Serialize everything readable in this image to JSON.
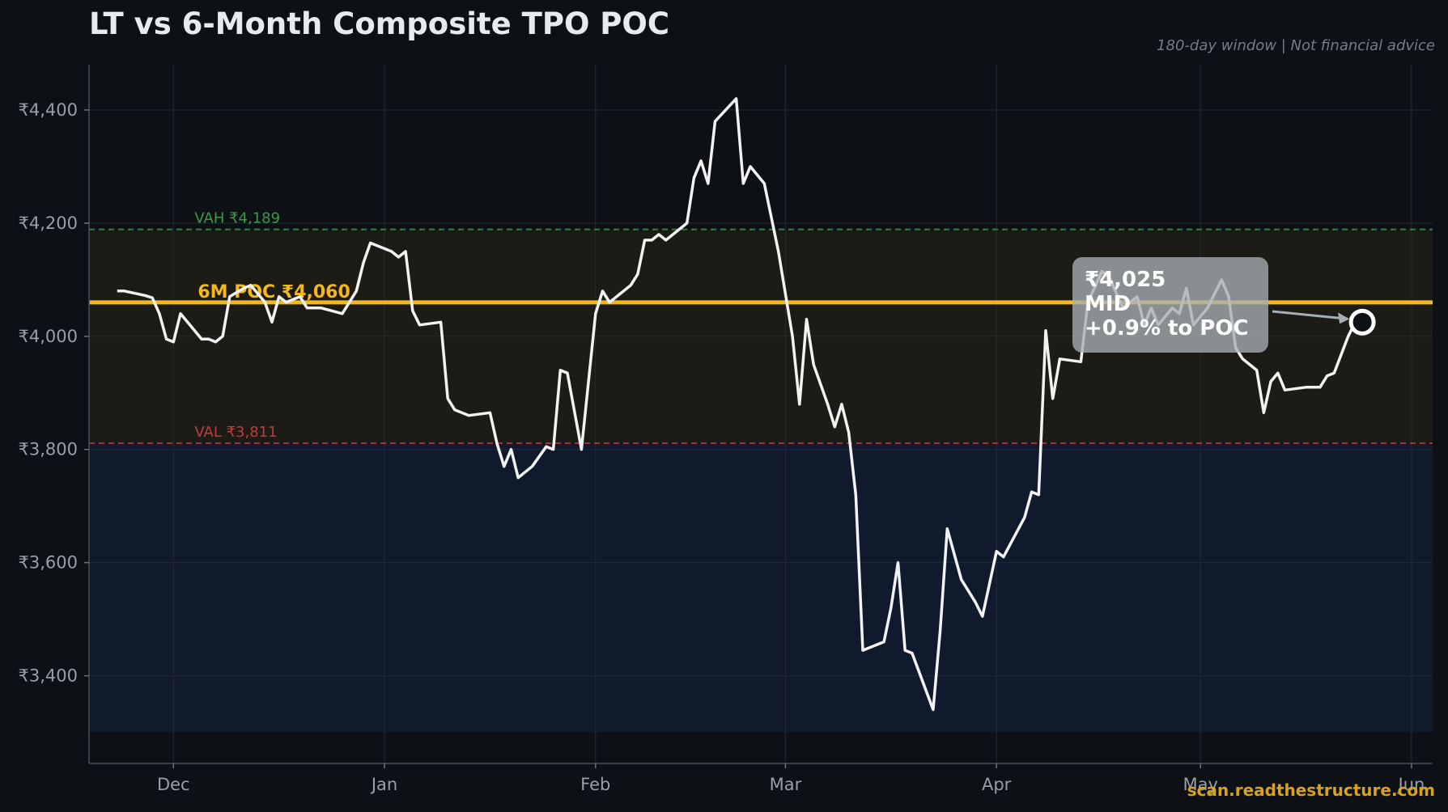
{
  "header": {
    "title": "LT vs 6-Month Composite TPO POC",
    "subtitle": "180-day window | Not financial advice"
  },
  "footer": {
    "watermark": "scan.readthestructure.com"
  },
  "chart_data": {
    "type": "line",
    "ylim": [
      3245,
      4480
    ],
    "xlim": [
      -9,
      182
    ],
    "y_ticks": [
      {
        "v": 3400,
        "label": "₹3,400"
      },
      {
        "v": 3600,
        "label": "₹3,600"
      },
      {
        "v": 3800,
        "label": "₹3,800"
      },
      {
        "v": 4000,
        "label": "₹4,000"
      },
      {
        "v": 4200,
        "label": "₹4,200"
      },
      {
        "v": 4400,
        "label": "₹4,400"
      }
    ],
    "x_ticks": [
      {
        "v": 3,
        "label": "Dec"
      },
      {
        "v": 33,
        "label": "Jan"
      },
      {
        "v": 63,
        "label": "Feb"
      },
      {
        "v": 90,
        "label": "Mar"
      },
      {
        "v": 120,
        "label": "Apr"
      },
      {
        "v": 149,
        "label": "May"
      },
      {
        "v": 179,
        "label": "Jun"
      }
    ],
    "grid": true,
    "zones": [
      {
        "name": "value-area-band",
        "from": 3811,
        "to": 4189,
        "color": "#1c1b16"
      },
      {
        "name": "below-val-band",
        "from": 3300,
        "to": 3811,
        "color": "#0f1b2c"
      }
    ],
    "levels": {
      "poc": {
        "value": 4060,
        "label": "6M POC ₹4,060",
        "color": "#f5b71a"
      },
      "vah": {
        "value": 4189,
        "label": "VAH ₹4,189",
        "color": "#3a9a4a"
      },
      "val": {
        "value": 3811,
        "label": "VAL ₹3,811",
        "color": "#c23b3b"
      }
    },
    "series": [
      {
        "color": "#f2f2f2",
        "points": [
          [
            -5,
            4080
          ],
          [
            -4,
            4080
          ],
          [
            -1,
            4072
          ],
          [
            0,
            4068
          ],
          [
            1,
            4040
          ],
          [
            2,
            3995
          ],
          [
            3,
            3990
          ],
          [
            4,
            4040
          ],
          [
            7,
            3995
          ],
          [
            8,
            3995
          ],
          [
            9,
            3990
          ],
          [
            10,
            4000
          ],
          [
            11,
            4070
          ],
          [
            13,
            4085
          ],
          [
            14,
            4090
          ],
          [
            16,
            4060
          ],
          [
            17,
            4025
          ],
          [
            18,
            4070
          ],
          [
            19,
            4060
          ],
          [
            21,
            4070
          ],
          [
            22,
            4050
          ],
          [
            24,
            4050
          ],
          [
            27,
            4040
          ],
          [
            29,
            4080
          ],
          [
            30,
            4130
          ],
          [
            31,
            4165
          ],
          [
            34,
            4150
          ],
          [
            35,
            4140
          ],
          [
            36,
            4150
          ],
          [
            37,
            4045
          ],
          [
            38,
            4020
          ],
          [
            41,
            4025
          ],
          [
            42,
            3890
          ],
          [
            43,
            3870
          ],
          [
            45,
            3860
          ],
          [
            48,
            3865
          ],
          [
            49,
            3810
          ],
          [
            50,
            3770
          ],
          [
            51,
            3800
          ],
          [
            52,
            3750
          ],
          [
            54,
            3770
          ],
          [
            56,
            3805
          ],
          [
            57,
            3800
          ],
          [
            58,
            3940
          ],
          [
            59,
            3935
          ],
          [
            61,
            3800
          ],
          [
            62,
            3920
          ],
          [
            63,
            4040
          ],
          [
            64,
            4080
          ],
          [
            65,
            4060
          ],
          [
            68,
            4090
          ],
          [
            69,
            4110
          ],
          [
            70,
            4170
          ],
          [
            71,
            4170
          ],
          [
            72,
            4180
          ],
          [
            73,
            4170
          ],
          [
            75,
            4190
          ],
          [
            76,
            4200
          ],
          [
            77,
            4280
          ],
          [
            78,
            4310
          ],
          [
            79,
            4270
          ],
          [
            80,
            4380
          ],
          [
            83,
            4420
          ],
          [
            84,
            4270
          ],
          [
            85,
            4300
          ],
          [
            87,
            4270
          ],
          [
            89,
            4150
          ],
          [
            91,
            4000
          ],
          [
            92,
            3880
          ],
          [
            93,
            4030
          ],
          [
            94,
            3950
          ],
          [
            96,
            3880
          ],
          [
            97,
            3840
          ],
          [
            98,
            3880
          ],
          [
            99,
            3830
          ],
          [
            100,
            3720
          ],
          [
            101,
            3445
          ],
          [
            104,
            3460
          ],
          [
            105,
            3520
          ],
          [
            106,
            3600
          ],
          [
            107,
            3445
          ],
          [
            108,
            3440
          ],
          [
            111,
            3340
          ],
          [
            112,
            3480
          ],
          [
            113,
            3660
          ],
          [
            115,
            3570
          ],
          [
            117,
            3530
          ],
          [
            118,
            3505
          ],
          [
            120,
            3620
          ],
          [
            121,
            3610
          ],
          [
            124,
            3680
          ],
          [
            125,
            3725
          ],
          [
            126,
            3720
          ],
          [
            127,
            4010
          ],
          [
            128,
            3890
          ],
          [
            129,
            3960
          ],
          [
            132,
            3955
          ],
          [
            133,
            4060
          ],
          [
            135,
            4115
          ],
          [
            136,
            4105
          ],
          [
            138,
            4050
          ],
          [
            140,
            4070
          ],
          [
            141,
            4020
          ],
          [
            142,
            4050
          ],
          [
            143,
            4020
          ],
          [
            145,
            4050
          ],
          [
            146,
            4040
          ],
          [
            147,
            4085
          ],
          [
            148,
            4020
          ],
          [
            150,
            4050
          ],
          [
            152,
            4100
          ],
          [
            153,
            4070
          ],
          [
            154,
            3980
          ],
          [
            155,
            3960
          ],
          [
            157,
            3940
          ],
          [
            158,
            3865
          ],
          [
            159,
            3920
          ],
          [
            160,
            3935
          ],
          [
            161,
            3905
          ],
          [
            164,
            3910
          ],
          [
            166,
            3910
          ],
          [
            167,
            3930
          ],
          [
            168,
            3935
          ],
          [
            170,
            4000
          ],
          [
            171,
            4025
          ],
          [
            172,
            4025
          ]
        ]
      }
    ],
    "marker": {
      "x": 172,
      "y": 4025,
      "callout_lines": [
        "₹4,025",
        "MID",
        "+0.9% to POC"
      ]
    }
  }
}
